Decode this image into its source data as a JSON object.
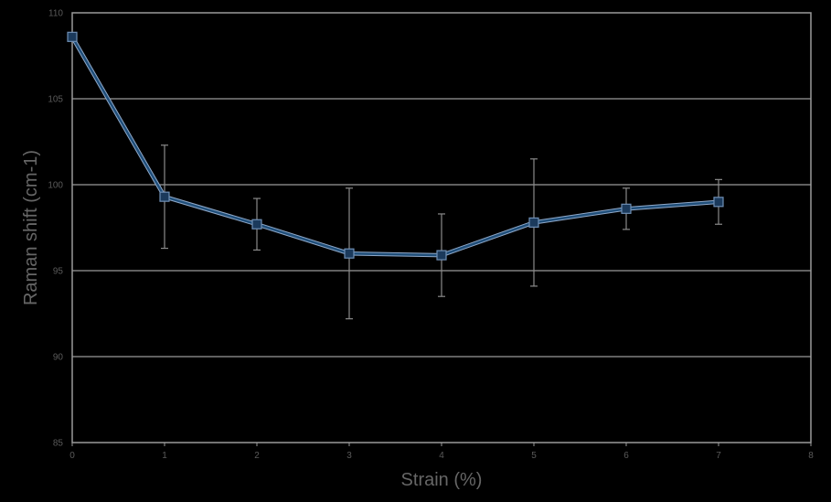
{
  "chart_data": {
    "type": "line",
    "title": "",
    "xlabel": "Strain (%)",
    "ylabel": "Raman shift (cm-1)",
    "xlim": [
      0,
      8
    ],
    "ylim": [
      85,
      110
    ],
    "x_ticks": [
      "0",
      "1",
      "2",
      "3",
      "4",
      "5",
      "6",
      "7",
      "8"
    ],
    "y_ticks": [
      "85",
      "90",
      "95",
      "100",
      "105",
      "110"
    ],
    "grid": "horizontal",
    "legend": "none",
    "series": [
      {
        "color": "#1f4e79",
        "marker": "square",
        "x": [
          0,
          1,
          2,
          3,
          4,
          5,
          6,
          7
        ],
        "y": [
          108.6,
          99.3,
          97.7,
          96.0,
          95.9,
          97.8,
          98.6,
          99.0
        ],
        "error": [
          null,
          3.0,
          1.5,
          3.8,
          2.4,
          3.7,
          1.2,
          1.3
        ]
      }
    ]
  }
}
